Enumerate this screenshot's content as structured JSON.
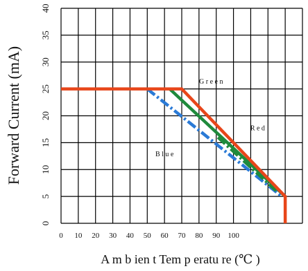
{
  "chart_data": {
    "type": "line",
    "xlabel": "A m b ien t  Tem p eratu re (℃ )",
    "ylabel": "Forward  Current (mA)",
    "xlim": [
      0,
      140
    ],
    "ylim": [
      0,
      40
    ],
    "grid": true,
    "x_ticks": [
      {
        "value": 0,
        "label": "0"
      },
      {
        "value": 10,
        "label": "10"
      },
      {
        "value": 20,
        "label": "20"
      },
      {
        "value": 30,
        "label": "30"
      },
      {
        "value": 40,
        "label": "40"
      },
      {
        "value": 50,
        "label": "50"
      },
      {
        "value": 60,
        "label": "60"
      },
      {
        "value": 70,
        "label": "70"
      },
      {
        "value": 80,
        "label": "80"
      },
      {
        "value": 90,
        "label": "90"
      },
      {
        "value": 100,
        "label": "100"
      }
    ],
    "y_ticks": [
      {
        "value": 0,
        "label": "0"
      },
      {
        "value": 5,
        "label": "5"
      },
      {
        "value": 10,
        "label": "10"
      },
      {
        "value": 15,
        "label": "15"
      },
      {
        "value": 20,
        "label": "20"
      },
      {
        "value": 25,
        "label": "25"
      },
      {
        "value": 30,
        "label": "30"
      },
      {
        "value": 35,
        "label": "35"
      },
      {
        "value": 40,
        "label": "40"
      }
    ],
    "series": [
      {
        "name": "Red",
        "color": "#e8461a",
        "style": "solid",
        "x": [
          0,
          70,
          130,
          130
        ],
        "y": [
          25,
          25,
          5,
          0
        ]
      },
      {
        "name": "Green",
        "color": "#1f8a3c",
        "style": "solid",
        "x": [
          63,
          130
        ],
        "y": [
          25,
          5
        ]
      },
      {
        "name": "Green",
        "color": "#1f8a3c",
        "style": "dashdot",
        "x": [
          91,
          125
        ],
        "y": [
          16,
          6
        ]
      },
      {
        "name": "Blue",
        "color": "#2a7ad6",
        "style": "dashdot",
        "x": [
          50,
          128
        ],
        "y": [
          25,
          5
        ]
      }
    ],
    "annotations": [
      {
        "text": "G r e e n",
        "x": 87,
        "y": 26
      },
      {
        "text": "R e d",
        "x": 114,
        "y": 17.3
      },
      {
        "text": "B l u e",
        "x": 60,
        "y": 12.5
      }
    ]
  }
}
